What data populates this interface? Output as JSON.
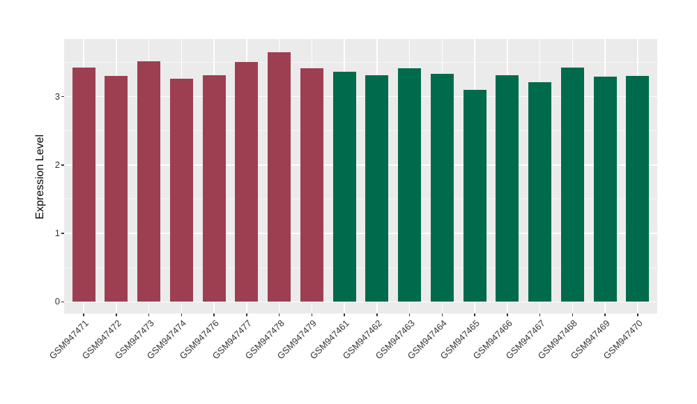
{
  "chart_data": {
    "type": "bar",
    "title": "",
    "xlabel": "",
    "ylabel": "Expression Level",
    "categories": [
      "GSM947471",
      "GSM947472",
      "GSM947473",
      "GSM947474",
      "GSM947476",
      "GSM947477",
      "GSM947478",
      "GSM947479",
      "GSM947461",
      "GSM947462",
      "GSM947463",
      "GSM947464",
      "GSM947465",
      "GSM947466",
      "GSM947467",
      "GSM947468",
      "GSM947469",
      "GSM947470"
    ],
    "values": [
      3.42,
      3.3,
      3.51,
      3.26,
      3.31,
      3.5,
      3.65,
      3.41,
      3.36,
      3.31,
      3.41,
      3.33,
      3.1,
      3.31,
      3.21,
      3.42,
      3.29,
      3.3
    ],
    "bar_colors": [
      "#9D3F50",
      "#9D3F50",
      "#9D3F50",
      "#9D3F50",
      "#9D3F50",
      "#9D3F50",
      "#9D3F50",
      "#9D3F50",
      "#006B4C",
      "#006B4C",
      "#006B4C",
      "#006B4C",
      "#006B4C",
      "#006B4C",
      "#006B4C",
      "#006B4C",
      "#006B4C",
      "#006B4C"
    ],
    "palette": {
      "left_group": "#9D3F50",
      "right_group": "#006B4C"
    },
    "ylim": [
      -0.17,
      3.84
    ],
    "yticks": [
      0,
      1,
      2,
      3
    ],
    "ytick_labels": [
      "0",
      "1",
      "2",
      "3"
    ],
    "yminor": [
      0.5,
      1.5,
      2.5,
      3.5
    ],
    "bar_width_fraction": 0.7,
    "grid": "white major gridlines at y integers and category centers, white minor at y half-integers",
    "legend_position": "none",
    "panel_background": "#EBEBEB",
    "grid_color": "#FFFFFF",
    "axis_text_color": "#333333",
    "axis_title_color": "#000000"
  }
}
